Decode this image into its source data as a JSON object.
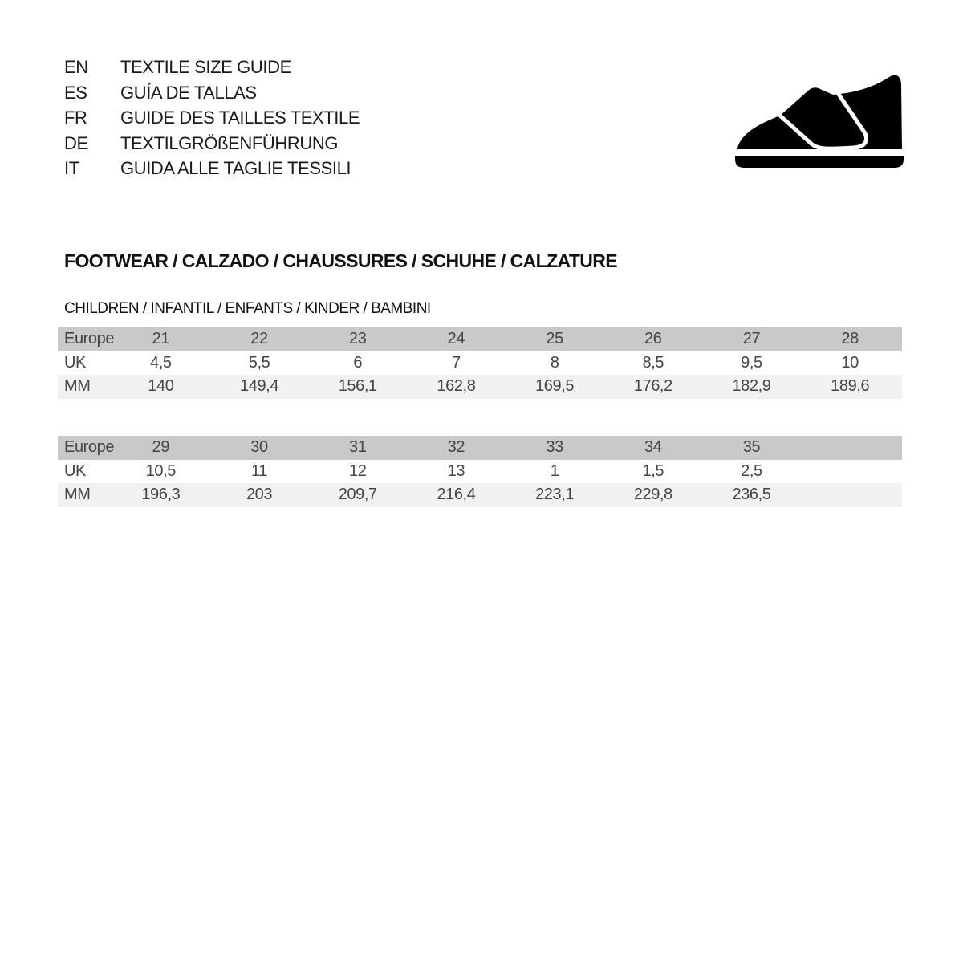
{
  "titles": [
    {
      "code": "EN",
      "text": "TEXTILE SIZE GUIDE"
    },
    {
      "code": "ES",
      "text": "GUÍA DE TALLAS"
    },
    {
      "code": "FR",
      "text": "GUIDE DES TAILLES TEXTILE"
    },
    {
      "code": "DE",
      "text": "TEXTILGRÖßENFÜHRUNG"
    },
    {
      "code": "IT",
      "text": "GUIDA ALLE TAGLIE TESSILI"
    }
  ],
  "icon": "child-shoe-velcro-icon",
  "section_title": "FOOTWEAR / CALZADO / CHAUSSURES / SCHUHE / CALZATURE",
  "subsection_title": "CHILDREN / INFANTIL / ENFANTS / KINDER / BAMBINI",
  "tables": [
    {
      "rows": [
        {
          "label": "Europe",
          "values": [
            "21",
            "22",
            "23",
            "24",
            "25",
            "26",
            "27",
            "28"
          ]
        },
        {
          "label": "UK",
          "values": [
            "4,5",
            "5,5",
            "6",
            "7",
            "8",
            "8,5",
            "9,5",
            "10"
          ]
        },
        {
          "label": "MM",
          "values": [
            "140",
            "149,4",
            "156,1",
            "162,8",
            "169,5",
            "176,2",
            "182,9",
            "189,6"
          ]
        }
      ]
    },
    {
      "rows": [
        {
          "label": "Europe",
          "values": [
            "29",
            "30",
            "31",
            "32",
            "33",
            "34",
            "35",
            ""
          ]
        },
        {
          "label": "UK",
          "values": [
            "10,5",
            "11",
            "12",
            "13",
            "1",
            "1,5",
            "2,5",
            ""
          ]
        },
        {
          "label": "MM",
          "values": [
            "196,3",
            "203",
            "209,7",
            "216,4",
            "223,1",
            "229,8",
            "236,5",
            ""
          ]
        }
      ]
    }
  ],
  "colors": {
    "header_row": "#c9c9c9",
    "alt_row": "#f1f1f1"
  }
}
